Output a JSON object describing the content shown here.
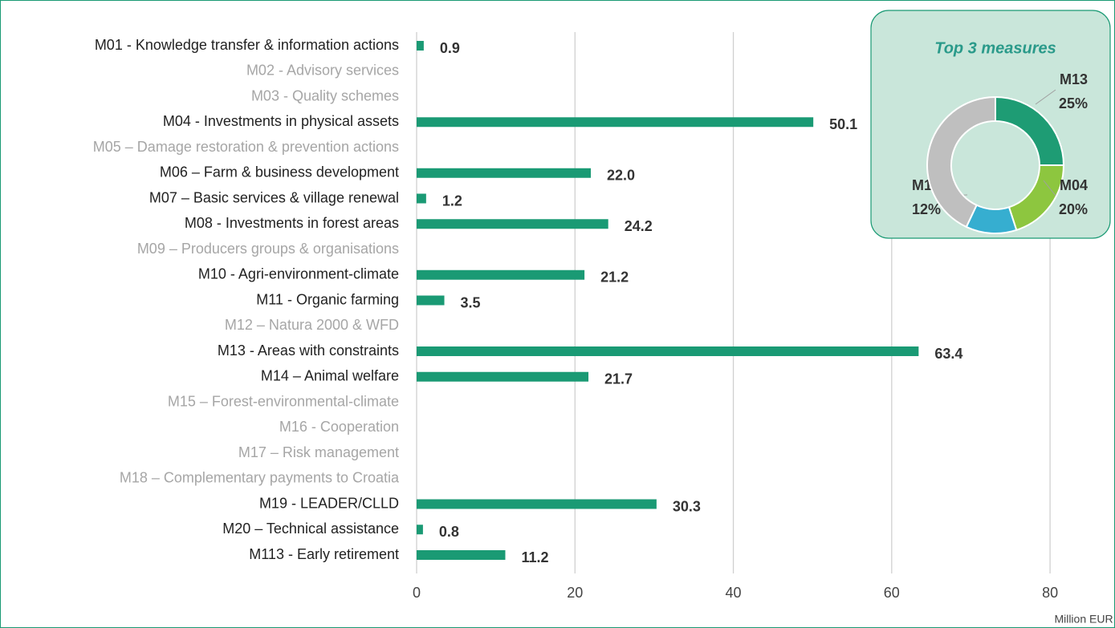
{
  "chart_data": [
    {
      "type": "bar",
      "categories": [
        "M01 - Knowledge transfer & information actions",
        "M02 - Advisory services",
        "M03 - Quality schemes",
        "M04 - Investments in physical assets",
        "M05 – Damage restoration & prevention actions",
        "M06 – Farm & business development",
        "M07 – Basic services & village renewal",
        "M08 - Investments in forest areas",
        "M09 – Producers groups  & organisations",
        "M10 - Agri-environment-climate",
        "M11 - Organic farming",
        "M12 – Natura 2000 & WFD",
        "M13 - Areas with constraints",
        "M14 – Animal welfare",
        "M15 – Forest-environmental-climate",
        "M16 - Cooperation",
        "M17 – Risk management",
        "M18 – Complementary payments to Croatia",
        "M19 - LEADER/CLLD",
        "M20 – Technical assistance",
        "M113 - Early retirement"
      ],
      "values": [
        0.9,
        null,
        null,
        50.1,
        null,
        22.0,
        1.2,
        24.2,
        null,
        21.2,
        3.5,
        null,
        63.4,
        21.7,
        null,
        null,
        null,
        null,
        30.3,
        0.8,
        11.2
      ],
      "value_labels": [
        "0.9",
        null,
        null,
        "50.1",
        null,
        "22.0",
        "1.2",
        "24.2",
        null,
        "21.2",
        "3.5",
        null,
        "63.4",
        "21.7",
        null,
        null,
        null,
        null,
        "30.3",
        "0.8",
        "11.2"
      ],
      "color": "#1a9a74",
      "xlim": [
        0,
        88
      ],
      "xticks": [
        0,
        20,
        40,
        60,
        80
      ],
      "grid": true,
      "x_label": "Million EUR"
    },
    {
      "type": "pie",
      "title": "Top 3 measures",
      "categories": [
        "M13",
        "M04",
        "M19",
        null
      ],
      "values": [
        25,
        20,
        12,
        43
      ],
      "value_labels": [
        "25%",
        "20%",
        "12%",
        null
      ],
      "colors": [
        "#1e9c74",
        "#8dc63f",
        "#36aed0",
        "#bfbfbf"
      ]
    }
  ]
}
